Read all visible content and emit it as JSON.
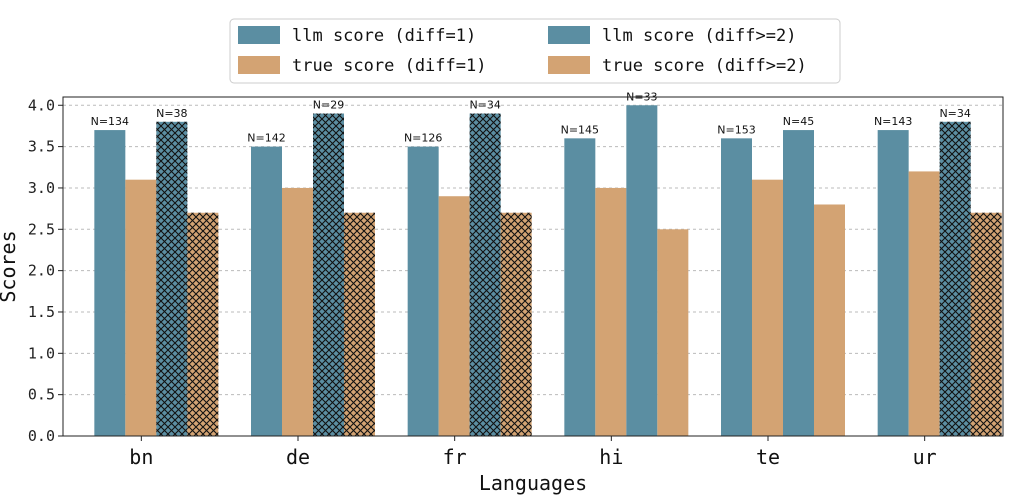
{
  "chart_data": {
    "type": "bar",
    "categories": [
      "bn",
      "de",
      "fr",
      "hi",
      "te",
      "ur"
    ],
    "series": [
      {
        "name": "llm score (diff=1)",
        "values": [
          3.7,
          3.5,
          3.5,
          3.6,
          3.6,
          3.7
        ],
        "color": "#5b8ea2",
        "hatch": false
      },
      {
        "name": "true score (diff=1)",
        "values": [
          3.1,
          3.0,
          2.9,
          3.0,
          3.1,
          3.2
        ],
        "color": "#d3a373",
        "hatch": false
      },
      {
        "name": "llm score (diff>=2)",
        "values": [
          3.8,
          3.9,
          3.9,
          4.0,
          3.7,
          3.8
        ],
        "color": "#5b8ea2",
        "hatch": true
      },
      {
        "name": "true score (diff>=2)",
        "values": [
          2.7,
          2.7,
          2.7,
          2.5,
          2.8,
          2.7
        ],
        "color": "#d3a373",
        "hatch": true
      }
    ],
    "hatched_categories": [
      "bn",
      "de",
      "fr",
      "ur"
    ],
    "n_labels_diff1": [
      "N=134",
      "N=142",
      "N=126",
      "N=145",
      "N=153",
      "N=143"
    ],
    "n_labels_diff2": [
      "N=38",
      "N=29",
      "N=34",
      "N=33",
      "N=45",
      "N=34"
    ],
    "xlabel": "Languages",
    "ylabel": "Scores",
    "ylim": [
      0,
      4.1
    ],
    "yticks": [
      "0.0",
      "0.5",
      "1.0",
      "1.5",
      "2.0",
      "2.5",
      "3.0",
      "3.5",
      "4.0"
    ],
    "grid": "horizontal dashed",
    "legend_placement": "top-center"
  }
}
